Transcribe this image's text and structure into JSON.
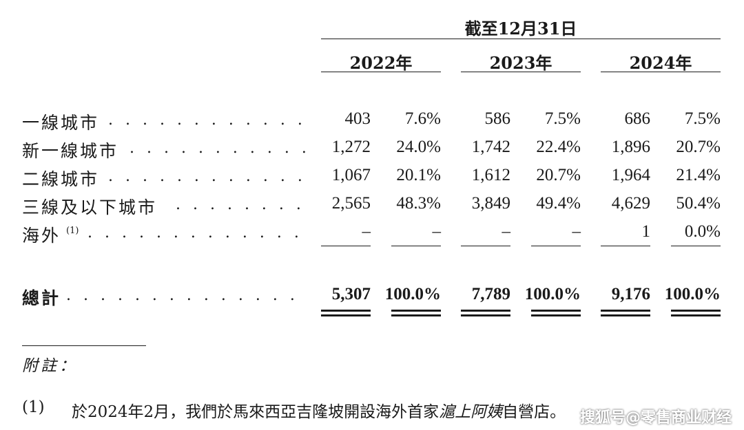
{
  "header": {
    "period": "截至12月31日",
    "years": [
      "2022年",
      "2023年",
      "2024年"
    ]
  },
  "rows": [
    {
      "label": "一線城市",
      "dots": ". . . . . . . . . . . . . . . . . .",
      "values": [
        "403",
        "7.6%",
        "586",
        "7.5%",
        "686",
        "7.5%"
      ]
    },
    {
      "label": "新一線城市",
      "dots": ". . . . . . . . . . . . . . . . . .",
      "values": [
        "1,272",
        "24.0%",
        "1,742",
        "22.4%",
        "1,896",
        "20.7%"
      ]
    },
    {
      "label": "二線城市",
      "dots": ". . . . . . . . . . . . . . . . . .",
      "values": [
        "1,067",
        "20.1%",
        "1,612",
        "20.7%",
        "1,964",
        "21.4%"
      ]
    },
    {
      "label": "三線及以下城市",
      "dots": ". . . . . . . . . . . . . . . . . .",
      "values": [
        "2,565",
        "48.3%",
        "3,849",
        "49.4%",
        "4,629",
        "50.4%"
      ]
    },
    {
      "label": "海外",
      "footnote": "(1)",
      "dots": ". . . . . . . . . . . . . . . . . .",
      "values": [
        "–",
        "–",
        "–",
        "–",
        "1",
        "0.0%"
      ]
    }
  ],
  "total": {
    "label": "總計",
    "dots": ". . . . . . . . . . . . . . . . . .",
    "values": [
      "5,307",
      "100.0%",
      "7,789",
      "100.0%",
      "9,176",
      "100.0%"
    ]
  },
  "notes": {
    "heading": "附註：",
    "item_number": "(1)",
    "item_text": "於2024年2月，我們於馬來西亞吉隆坡開設海外首家",
    "item_italic": "滬上阿姨",
    "item_tail": "自營店。"
  },
  "watermark": "搜狐号@零售商业财经"
}
